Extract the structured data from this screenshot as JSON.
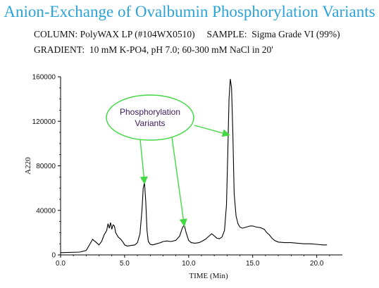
{
  "header": {
    "title": "Anion-Exchange of Ovalbumin Phosphorylation Variants",
    "column_line": "COLUMN: PolyWAX LP (#104WX0510)     SAMPLE:  Sigma Grade VI (99%)",
    "gradient_line": "GRADIENT:  10 mM K-PO4, pH 7.0; 60-300 mM NaCl in 20'"
  },
  "chart_data": {
    "type": "line",
    "xlabel": "TIME (Min)",
    "ylabel": "A220",
    "xlim": [
      0,
      22
    ],
    "ylim": [
      0,
      160000
    ],
    "x_ticks": [
      0,
      5,
      10,
      15,
      20
    ],
    "x_tick_labels": [
      "0.0",
      "5.0",
      "10.0",
      "15.0",
      "20.0"
    ],
    "y_ticks": [
      0,
      40000,
      80000,
      120000,
      160000
    ],
    "y_tick_labels": [
      "0",
      "40000",
      "80000",
      "120000",
      "160000"
    ],
    "grid": false,
    "series": [
      {
        "color": "#000000",
        "x": [
          0,
          1.5,
          2.0,
          2.2,
          2.5,
          2.8,
          3.0,
          3.2,
          3.4,
          3.6,
          3.7,
          3.8,
          3.9,
          4.0,
          4.1,
          4.2,
          4.3,
          4.5,
          4.7,
          4.9,
          5.0,
          5.2,
          5.5,
          5.8,
          6.0,
          6.2,
          6.35,
          6.45,
          6.55,
          6.65,
          6.75,
          6.85,
          7.0,
          7.2,
          7.5,
          7.8,
          8.0,
          8.3,
          8.6,
          9.0,
          9.3,
          9.5,
          9.65,
          9.8,
          10.0,
          10.2,
          10.5,
          10.8,
          11.0,
          11.3,
          11.6,
          11.8,
          12.0,
          12.2,
          12.4,
          12.6,
          12.8,
          12.95,
          13.05,
          13.15,
          13.25,
          13.35,
          13.45,
          13.55,
          13.7,
          13.85,
          14.0,
          14.2,
          14.5,
          14.8,
          15.0,
          15.3,
          15.6,
          15.9,
          16.1,
          16.3,
          16.5,
          16.7,
          17.0,
          17.5,
          18.0,
          18.5,
          19.0,
          19.5,
          20.0,
          20.5,
          20.8
        ],
        "y": [
          2000,
          2500,
          4000,
          8000,
          14000,
          11000,
          9000,
          12000,
          18000,
          22000,
          28000,
          24000,
          29000,
          23000,
          27000,
          26000,
          20000,
          16000,
          14000,
          11000,
          9000,
          8000,
          8500,
          9000,
          11000,
          19000,
          40000,
          60000,
          65000,
          48000,
          22000,
          12000,
          9500,
          9000,
          10000,
          11000,
          12000,
          12500,
          12000,
          13000,
          17000,
          24000,
          27000,
          20000,
          13000,
          11000,
          10500,
          11000,
          12000,
          14000,
          17000,
          19000,
          17000,
          15000,
          14500,
          16000,
          22000,
          45000,
          90000,
          140000,
          158000,
          150000,
          110000,
          55000,
          35000,
          28000,
          25000,
          24000,
          25000,
          26000,
          26000,
          25000,
          24500,
          23000,
          20000,
          18000,
          15000,
          13000,
          11500,
          11000,
          11000,
          10500,
          10000,
          10000,
          9500,
          9000,
          9000
        ]
      }
    ],
    "annotations": [
      {
        "text_lines": [
          "Phosphorylation",
          "Variants"
        ],
        "shape": "ellipse",
        "arrow_color": "#44d844",
        "arrows_to": [
          [
            6.55,
            65000
          ],
          [
            9.65,
            27000
          ],
          [
            13.1,
            108000
          ]
        ]
      }
    ]
  }
}
